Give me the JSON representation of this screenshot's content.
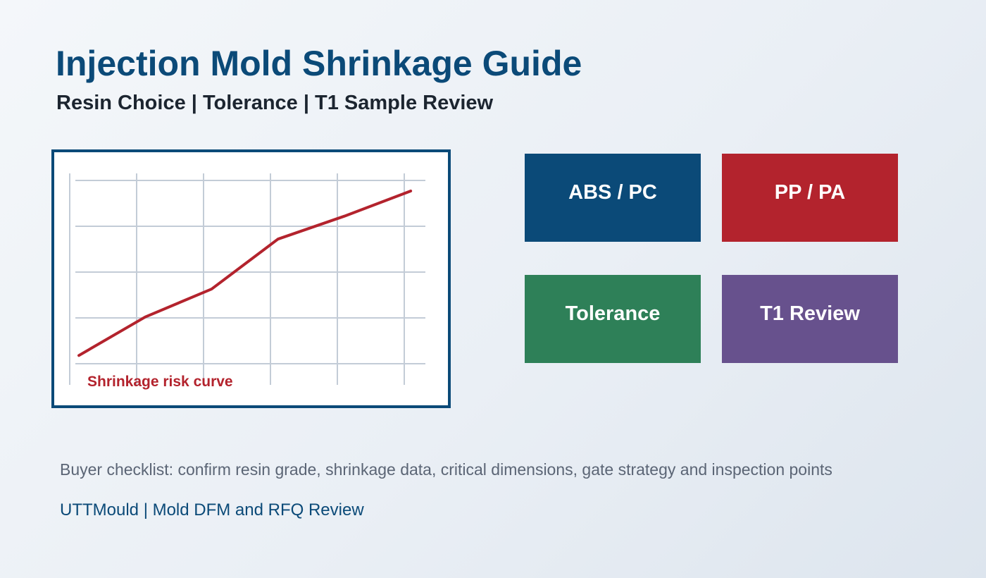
{
  "header": {
    "title": "Injection Mold Shrinkage Guide",
    "subtitle": "Resin Choice  |  Tolerance  |  T1 Sample Review"
  },
  "chart_data": {
    "type": "line",
    "title": "",
    "xlabel": "",
    "ylabel": "",
    "grid": true,
    "x": [
      0,
      1,
      2,
      3,
      4,
      5
    ],
    "xlim": [
      0,
      5.2
    ],
    "ylim": [
      0,
      4
    ],
    "series": [
      {
        "values": [
          0.18,
          1.02,
          1.63,
          2.72,
          3.22,
          3.77
        ],
        "color": "#b3232d"
      }
    ],
    "annotations": [
      "Shrinkage risk curve"
    ]
  },
  "tiles": [
    {
      "label": "ABS / PC",
      "color": "#0b4a78"
    },
    {
      "label": "PP / PA",
      "color": "#b3232d"
    },
    {
      "label": "Tolerance",
      "color": "#2e8058"
    },
    {
      "label": "T1 Review",
      "color": "#67518d"
    }
  ],
  "checklist": "Buyer checklist: confirm resin grade, shrinkage data, critical dimensions, gate strategy and inspection points",
  "footer": "UTTMould | Mold DFM and RFQ Review"
}
